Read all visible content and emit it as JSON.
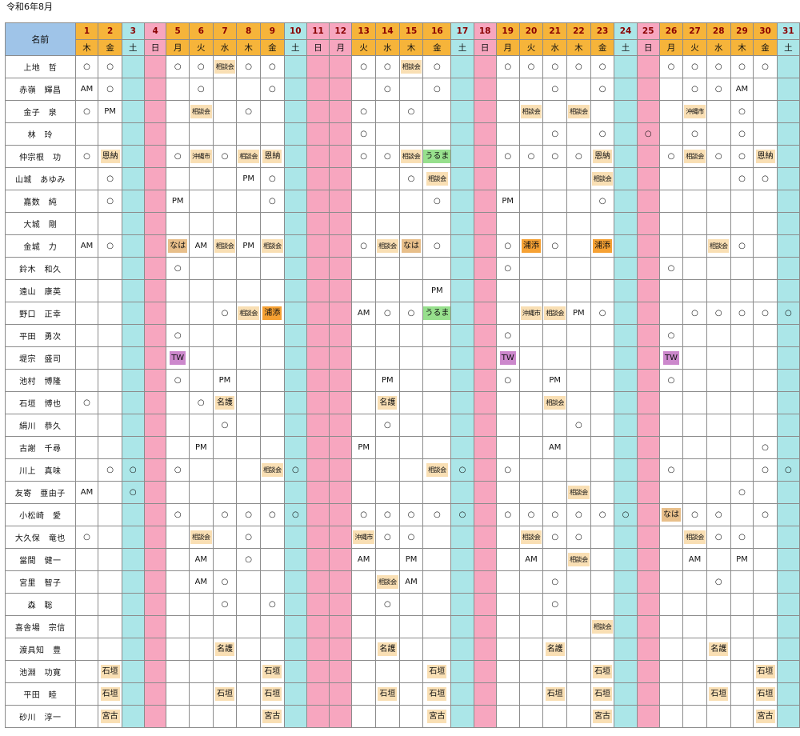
{
  "title": "令和6年8月",
  "name_header": "名前",
  "days": [
    {
      "num": "1",
      "dow": "木",
      "type": "wd"
    },
    {
      "num": "2",
      "dow": "金",
      "type": "wd"
    },
    {
      "num": "3",
      "dow": "土",
      "type": "sat"
    },
    {
      "num": "4",
      "dow": "日",
      "type": "sun"
    },
    {
      "num": "5",
      "dow": "月",
      "type": "wd"
    },
    {
      "num": "6",
      "dow": "火",
      "type": "wd"
    },
    {
      "num": "7",
      "dow": "水",
      "type": "wd"
    },
    {
      "num": "8",
      "dow": "木",
      "type": "wd"
    },
    {
      "num": "9",
      "dow": "金",
      "type": "wd"
    },
    {
      "num": "10",
      "dow": "土",
      "type": "sat"
    },
    {
      "num": "11",
      "dow": "日",
      "type": "sun"
    },
    {
      "num": "12",
      "dow": "月",
      "type": "sun"
    },
    {
      "num": "13",
      "dow": "火",
      "type": "wd"
    },
    {
      "num": "14",
      "dow": "水",
      "type": "wd"
    },
    {
      "num": "15",
      "dow": "木",
      "type": "wd"
    },
    {
      "num": "16",
      "dow": "金",
      "type": "wd"
    },
    {
      "num": "17",
      "dow": "土",
      "type": "sat"
    },
    {
      "num": "18",
      "dow": "日",
      "type": "sun"
    },
    {
      "num": "19",
      "dow": "月",
      "type": "wd"
    },
    {
      "num": "20",
      "dow": "火",
      "type": "wd"
    },
    {
      "num": "21",
      "dow": "水",
      "type": "wd"
    },
    {
      "num": "22",
      "dow": "木",
      "type": "wd"
    },
    {
      "num": "23",
      "dow": "金",
      "type": "wd"
    },
    {
      "num": "24",
      "dow": "土",
      "type": "sat"
    },
    {
      "num": "25",
      "dow": "日",
      "type": "sun"
    },
    {
      "num": "26",
      "dow": "月",
      "type": "wd"
    },
    {
      "num": "27",
      "dow": "火",
      "type": "wd"
    },
    {
      "num": "28",
      "dow": "水",
      "type": "wd"
    },
    {
      "num": "29",
      "dow": "木",
      "type": "wd"
    },
    {
      "num": "30",
      "dow": "金",
      "type": "wd"
    },
    {
      "num": "31",
      "dow": "土",
      "type": "sat"
    }
  ],
  "rows": [
    {
      "name": "上地　哲",
      "cells": [
        "○",
        "○",
        "",
        "",
        "○",
        "○",
        "相談会",
        "○",
        "○",
        "",
        "",
        "",
        "○",
        "○",
        "相談会",
        "○",
        "",
        "",
        "○",
        "○",
        "○",
        "○",
        "○",
        "",
        "",
        "○",
        "○",
        "○",
        "○",
        "○",
        ""
      ]
    },
    {
      "name": "赤嶺　輝昌",
      "cells": [
        "AM",
        "○",
        "",
        "",
        "",
        "○",
        "",
        "",
        "○",
        "",
        "",
        "",
        "",
        "○",
        "",
        "○",
        "",
        "",
        "",
        "",
        "○",
        "",
        "○",
        "",
        "",
        "",
        "○",
        "○",
        "AM",
        "",
        ""
      ]
    },
    {
      "name": "金子　泉",
      "cells": [
        "○",
        "PM",
        "",
        "",
        "",
        "相談会",
        "",
        "○",
        "",
        "",
        "",
        "",
        "○",
        "",
        "○",
        "",
        "",
        "",
        "",
        "相談会",
        "",
        "相談会",
        "",
        "",
        "",
        "",
        "沖縄市",
        "",
        "○",
        "",
        ""
      ]
    },
    {
      "name": "林　玲",
      "cells": [
        "",
        "",
        "",
        "",
        "",
        "",
        "",
        "",
        "",
        "",
        "",
        "",
        "○",
        "",
        "",
        "",
        "",
        "",
        "",
        "",
        "○",
        "",
        "○",
        "",
        "○",
        "",
        "○",
        "",
        "○",
        "",
        ""
      ]
    },
    {
      "name": "仲宗根　功",
      "cells": [
        "○",
        "恩納",
        "",
        "",
        "○",
        "沖縄市",
        "○",
        "相談会",
        "恩納",
        "",
        "",
        "",
        "○",
        "○",
        "相談会",
        "うるま",
        "",
        "",
        "○",
        "○",
        "○",
        "○",
        "恩納",
        "",
        "",
        "○",
        "相談会",
        "○",
        "○",
        "恩納",
        ""
      ]
    },
    {
      "name": "山城　あゆみ",
      "cells": [
        "",
        "○",
        "",
        "",
        "",
        "",
        "",
        "PM",
        "○",
        "",
        "",
        "",
        "",
        "",
        "○",
        "相談会",
        "",
        "",
        "",
        "",
        "",
        "",
        "相談会",
        "",
        "",
        "",
        "",
        "",
        "○",
        "○",
        ""
      ]
    },
    {
      "name": "嘉数　純",
      "cells": [
        "",
        "○",
        "",
        "",
        "PM",
        "",
        "",
        "",
        "○",
        "",
        "",
        "",
        "",
        "",
        "",
        "○",
        "",
        "",
        "PM",
        "",
        "",
        "",
        "○",
        "",
        "",
        "",
        "",
        "",
        "",
        "",
        ""
      ]
    },
    {
      "name": "大城　剛",
      "cells": [
        "",
        "",
        "",
        "",
        "",
        "",
        "",
        "",
        "",
        "",
        "",
        "",
        "",
        "",
        "",
        "",
        "",
        "",
        "",
        "",
        "",
        "",
        "",
        "",
        "",
        "",
        "",
        "",
        "",
        "",
        ""
      ]
    },
    {
      "name": "金城　力",
      "cells": [
        "AM",
        "○",
        "",
        "",
        "なは",
        "AM",
        "相談会",
        "PM",
        "相談会",
        "",
        "",
        "",
        "○",
        "相談会",
        "なは",
        "○",
        "",
        "",
        "○",
        "浦添",
        "○",
        "",
        "浦添",
        "",
        "",
        "",
        "",
        "相談会",
        "○",
        "",
        ""
      ]
    },
    {
      "name": "鈴木　和久",
      "cells": [
        "",
        "",
        "",
        "",
        "○",
        "",
        "",
        "",
        "",
        "",
        "",
        "",
        "",
        "",
        "",
        "",
        "",
        "",
        "○",
        "",
        "",
        "",
        "",
        "",
        "",
        "○",
        "",
        "",
        "",
        "",
        ""
      ]
    },
    {
      "name": "遠山　康英",
      "cells": [
        "",
        "",
        "",
        "",
        "",
        "",
        "",
        "",
        "",
        "",
        "",
        "",
        "",
        "",
        "",
        "PM",
        "",
        "",
        "",
        "",
        "",
        "",
        "",
        "",
        "",
        "",
        "",
        "",
        "",
        "",
        ""
      ]
    },
    {
      "name": "野口　正幸",
      "cells": [
        "",
        "",
        "",
        "",
        "",
        "",
        "○",
        "相談会",
        "浦添",
        "",
        "",
        "",
        "AM",
        "○",
        "○",
        "うるま",
        "",
        "",
        "",
        "沖縄市",
        "相談会",
        "PM",
        "○",
        "",
        "",
        "",
        "○",
        "○",
        "○",
        "○",
        "○"
      ]
    },
    {
      "name": "平田　勇次",
      "cells": [
        "",
        "",
        "",
        "",
        "○",
        "",
        "",
        "",
        "",
        "",
        "",
        "",
        "",
        "",
        "",
        "",
        "",
        "",
        "○",
        "",
        "",
        "",
        "",
        "",
        "",
        "○",
        "",
        "",
        "",
        "",
        ""
      ]
    },
    {
      "name": "堤宗　盛司",
      "cells": [
        "",
        "",
        "",
        "",
        "TW",
        "",
        "",
        "",
        "",
        "",
        "",
        "",
        "",
        "",
        "",
        "",
        "",
        "",
        "TW",
        "",
        "",
        "",
        "",
        "",
        "",
        "TW",
        "",
        "",
        "",
        "",
        ""
      ]
    },
    {
      "name": "池村　博隆",
      "cells": [
        "",
        "",
        "",
        "",
        "○",
        "",
        "PM",
        "",
        "",
        "",
        "",
        "",
        "",
        "PM",
        "",
        "",
        "",
        "",
        "○",
        "",
        "PM",
        "",
        "",
        "",
        "",
        "○",
        "",
        "",
        "",
        "",
        ""
      ]
    },
    {
      "name": "石垣　博也",
      "cells": [
        "○",
        "",
        "",
        "",
        "",
        "○",
        "名護",
        "",
        "",
        "",
        "",
        "",
        "",
        "名護",
        "",
        "",
        "",
        "",
        "",
        "",
        "相談会",
        "",
        "",
        "",
        "",
        "",
        "",
        "",
        "",
        "",
        ""
      ]
    },
    {
      "name": "絹川　恭久",
      "cells": [
        "",
        "",
        "",
        "",
        "",
        "",
        "○",
        "",
        "",
        "",
        "",
        "",
        "",
        "○",
        "",
        "",
        "",
        "",
        "",
        "",
        "",
        "○",
        "",
        "",
        "",
        "",
        "",
        "",
        "",
        "",
        ""
      ]
    },
    {
      "name": "古謝　千尋",
      "cells": [
        "",
        "",
        "",
        "",
        "",
        "PM",
        "",
        "",
        "",
        "",
        "",
        "",
        "PM",
        "",
        "",
        "",
        "",
        "",
        "",
        "",
        "AM",
        "",
        "",
        "",
        "",
        "",
        "",
        "",
        "",
        "○",
        ""
      ]
    },
    {
      "name": "川上　真味",
      "cells": [
        "",
        "○",
        "○",
        "",
        "○",
        "",
        "",
        "",
        "相談会",
        "○",
        "",
        "",
        "",
        "",
        "",
        "相談会",
        "○",
        "",
        "○",
        "",
        "",
        "",
        "",
        "",
        "",
        "○",
        "",
        "",
        "",
        "○",
        "○"
      ]
    },
    {
      "name": "友寄　亜由子",
      "cells": [
        "AM",
        "",
        "○",
        "",
        "",
        "",
        "",
        "",
        "",
        "",
        "",
        "",
        "",
        "",
        "",
        "",
        "",
        "",
        "",
        "",
        "",
        "相談会",
        "",
        "",
        "",
        "",
        "",
        "",
        "○",
        "",
        ""
      ]
    },
    {
      "name": "小松崎　愛",
      "cells": [
        "",
        "",
        "",
        "",
        "○",
        "",
        "○",
        "○",
        "○",
        "○",
        "",
        "",
        "○",
        "○",
        "○",
        "○",
        "○",
        "",
        "○",
        "○",
        "○",
        "○",
        "○",
        "○",
        "",
        "なは",
        "○",
        "○",
        "",
        "○",
        ""
      ]
    },
    {
      "name": "大久保　竜也",
      "cells": [
        "○",
        "",
        "",
        "",
        "",
        "相談会",
        "",
        "○",
        "",
        "",
        "",
        "",
        "沖縄市",
        "○",
        "○",
        "",
        "",
        "",
        "",
        "相談会",
        "○",
        "○",
        "",
        "",
        "",
        "",
        "相談会",
        "○",
        "○",
        "",
        ""
      ]
    },
    {
      "name": "當間　健一",
      "cells": [
        "",
        "",
        "",
        "",
        "",
        "AM",
        "",
        "○",
        "",
        "",
        "",
        "",
        "AM",
        "",
        "PM",
        "",
        "",
        "",
        "",
        "AM",
        "",
        "相談会",
        "",
        "",
        "",
        "",
        "AM",
        "",
        "PM",
        "",
        ""
      ]
    },
    {
      "name": "宮里　智子",
      "cells": [
        "",
        "",
        "",
        "",
        "",
        "AM",
        "○",
        "",
        "",
        "",
        "",
        "",
        "",
        "相談会",
        "AM",
        "",
        "",
        "",
        "",
        "",
        "○",
        "",
        "",
        "",
        "",
        "",
        "",
        "○",
        "",
        "",
        ""
      ]
    },
    {
      "name": "森　聡",
      "cells": [
        "",
        "",
        "",
        "",
        "",
        "",
        "○",
        "",
        "○",
        "",
        "",
        "",
        "",
        "○",
        "",
        "",
        "",
        "",
        "",
        "",
        "○",
        "",
        "",
        "",
        "",
        "",
        "",
        "",
        "",
        "",
        ""
      ]
    },
    {
      "name": "喜舎場　宗信",
      "cells": [
        "",
        "",
        "",
        "",
        "",
        "",
        "",
        "",
        "",
        "",
        "",
        "",
        "",
        "",
        "",
        "",
        "",
        "",
        "",
        "",
        "",
        "",
        "相談会",
        "",
        "",
        "",
        "",
        "",
        "",
        "",
        ""
      ]
    },
    {
      "name": "渡具知　豊",
      "cells": [
        "",
        "",
        "",
        "",
        "",
        "",
        "名護",
        "",
        "",
        "",
        "",
        "",
        "",
        "名護",
        "",
        "",
        "",
        "",
        "",
        "",
        "名護",
        "",
        "",
        "",
        "",
        "",
        "",
        "名護",
        "",
        "",
        ""
      ]
    },
    {
      "name": "池淵　功寛",
      "cells": [
        "",
        "石垣",
        "",
        "",
        "",
        "",
        "",
        "",
        "石垣",
        "",
        "",
        "",
        "",
        "",
        "",
        "石垣",
        "",
        "",
        "",
        "",
        "",
        "",
        "石垣",
        "",
        "",
        "",
        "",
        "",
        "",
        "石垣",
        ""
      ]
    },
    {
      "name": "平田　睦",
      "cells": [
        "",
        "石垣",
        "",
        "",
        "",
        "",
        "石垣",
        "",
        "石垣",
        "",
        "",
        "",
        "",
        "石垣",
        "",
        "石垣",
        "",
        "",
        "",
        "",
        "石垣",
        "",
        "石垣",
        "",
        "",
        "",
        "",
        "石垣",
        "",
        "石垣",
        ""
      ]
    },
    {
      "name": "砂川　淳一",
      "cells": [
        "",
        "宮古",
        "",
        "",
        "",
        "",
        "",
        "",
        "宮古",
        "",
        "",
        "",
        "",
        "",
        "",
        "宮古",
        "",
        "",
        "",
        "",
        "",
        "",
        "宮古",
        "",
        "",
        "",
        "",
        "",
        "",
        "宮古",
        ""
      ]
    }
  ]
}
